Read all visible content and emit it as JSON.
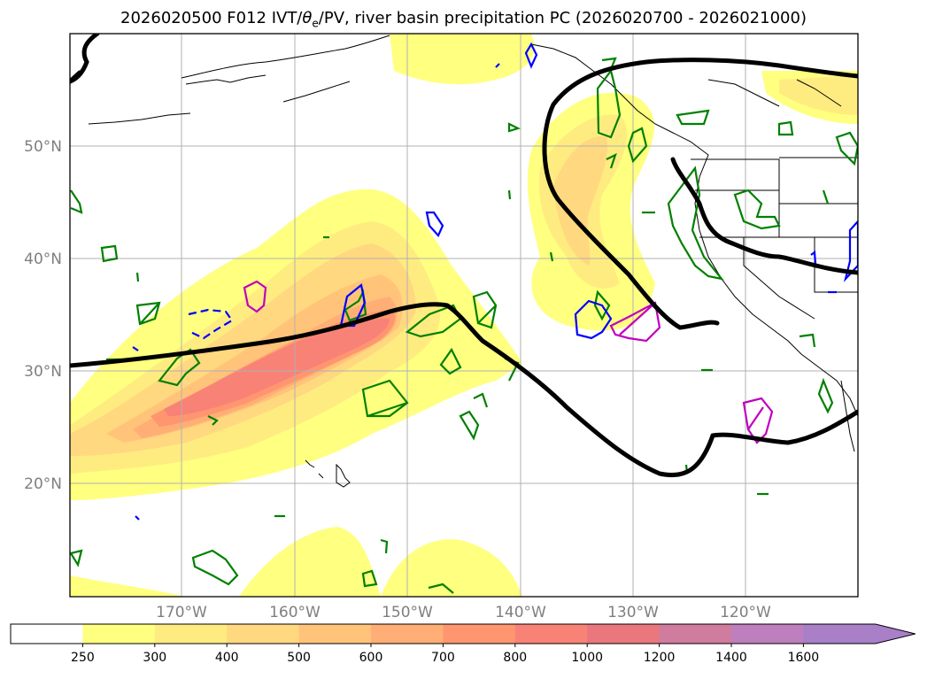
{
  "title": {
    "prefix": "2026020500 F012 IVT/",
    "theta": "θ",
    "theta_sub": "e",
    "suffix": "/PV, river basin precipitation PC (2026020700 - 2026021000)"
  },
  "map": {
    "lat_labels": [
      "50°N",
      "40°N",
      "30°N",
      "20°N"
    ],
    "lon_labels": [
      "170°W",
      "160°W",
      "150°W",
      "140°W",
      "130°W",
      "120°W"
    ]
  },
  "colorbar": {
    "ticks": [
      "250",
      "300",
      "400",
      "500",
      "600",
      "700",
      "800",
      "1000",
      "1200",
      "1400",
      "1600"
    ],
    "colors": [
      "#ffffff",
      "#ffff80",
      "#ffec80",
      "#ffd880",
      "#ffc47a",
      "#ffaf75",
      "#ff9670",
      "#f98277",
      "#e9777d",
      "#d07c9e",
      "#bd7fbd",
      "#a97fc8"
    ],
    "extend": "max"
  },
  "legend_colors": {
    "theta_e_contour": "#000000",
    "pv_positive": "#008000",
    "pv_negative": "#0000ff",
    "precip_contour": "#c000c0"
  }
}
